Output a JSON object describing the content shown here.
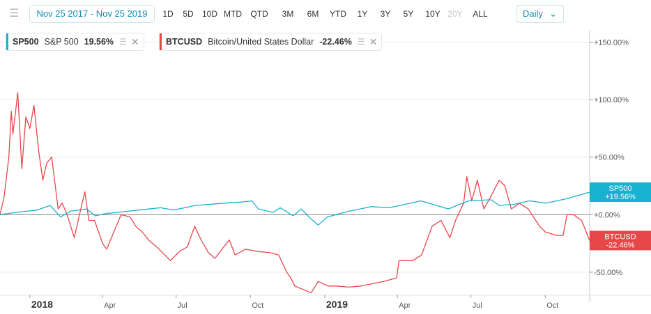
{
  "toolbar": {
    "date_range": "Nov 25 2017 - Nov 25 2019",
    "ranges": [
      "1D",
      "5D",
      "10D",
      "MTD",
      "QTD",
      "3M",
      "6M",
      "YTD",
      "1Y",
      "3Y",
      "5Y",
      "10Y",
      "20Y",
      "ALL"
    ],
    "disabled_range": "20Y",
    "interval": "Daily"
  },
  "legend": [
    {
      "symbol": "SP500",
      "name": "S&P 500",
      "change": "19.56%",
      "color": "#17b2cf"
    },
    {
      "symbol": "BTCUSD",
      "name": "Bitcoin/United States Dollar",
      "change": "-22.46%",
      "color": "#e8474a"
    }
  ],
  "colors": {
    "sp500": "#17b2cf",
    "btc": "#e8474a",
    "zero_line": "#888888",
    "grid": "#e9e9e9"
  },
  "chart_data": {
    "type": "line",
    "x_axis": {
      "start": "2017-11-25",
      "end": "2019-11-25",
      "ticks": [
        {
          "label": "2018",
          "date": "2018-01-01",
          "bold": true
        },
        {
          "label": "Apr",
          "date": "2018-04-01"
        },
        {
          "label": "Jul",
          "date": "2018-07-01"
        },
        {
          "label": "Oct",
          "date": "2018-10-01"
        },
        {
          "label": "2019",
          "date": "2019-01-01",
          "bold": true
        },
        {
          "label": "Apr",
          "date": "2019-04-01"
        },
        {
          "label": "Jul",
          "date": "2019-07-01"
        },
        {
          "label": "Oct",
          "date": "2019-10-01"
        }
      ]
    },
    "y_axis": {
      "unit": "%",
      "ylim": [
        -70,
        160
      ],
      "ticks": [
        {
          "value": 150,
          "label": "+150.00%"
        },
        {
          "value": 100,
          "label": "+100.00%"
        },
        {
          "value": 50,
          "label": "+50.00%"
        },
        {
          "value": 0,
          "label": "+0.00%"
        },
        {
          "value": -50,
          "label": "-50.00%"
        }
      ]
    },
    "end_labels": [
      {
        "series": "SP500",
        "name": "SP500",
        "value": "+19.56%"
      },
      {
        "series": "BTCUSD",
        "name": "BTCUSD",
        "value": "-22.46%"
      }
    ],
    "series": [
      {
        "name": "SP500",
        "points": [
          [
            "2017-11-25",
            0
          ],
          [
            "2017-12-15",
            2
          ],
          [
            "2018-01-10",
            4
          ],
          [
            "2018-01-26",
            8
          ],
          [
            "2018-02-08",
            -2
          ],
          [
            "2018-02-20",
            3
          ],
          [
            "2018-03-12",
            5
          ],
          [
            "2018-03-23",
            -1
          ],
          [
            "2018-04-05",
            1
          ],
          [
            "2018-04-20",
            2
          ],
          [
            "2018-05-15",
            4
          ],
          [
            "2018-06-12",
            6
          ],
          [
            "2018-06-28",
            4
          ],
          [
            "2018-07-25",
            8
          ],
          [
            "2018-08-29",
            10
          ],
          [
            "2018-09-20",
            11
          ],
          [
            "2018-10-03",
            12
          ],
          [
            "2018-10-11",
            5
          ],
          [
            "2018-10-29",
            2
          ],
          [
            "2018-11-07",
            6
          ],
          [
            "2018-11-23",
            -1
          ],
          [
            "2018-12-03",
            5
          ],
          [
            "2018-12-14",
            -3
          ],
          [
            "2018-12-24",
            -9
          ],
          [
            "2019-01-04",
            -2
          ],
          [
            "2019-01-31",
            3
          ],
          [
            "2019-02-28",
            7
          ],
          [
            "2019-03-22",
            6
          ],
          [
            "2019-04-30",
            12
          ],
          [
            "2019-05-15",
            9
          ],
          [
            "2019-06-03",
            5
          ],
          [
            "2019-06-28",
            12
          ],
          [
            "2019-07-26",
            13
          ],
          [
            "2019-08-05",
            8
          ],
          [
            "2019-08-23",
            9
          ],
          [
            "2019-09-12",
            12
          ],
          [
            "2019-10-02",
            10
          ],
          [
            "2019-10-28",
            14
          ],
          [
            "2019-11-25",
            19.56
          ]
        ]
      },
      {
        "name": "BTCUSD",
        "points": [
          [
            "2017-11-25",
            0
          ],
          [
            "2017-11-30",
            15
          ],
          [
            "2017-12-06",
            50
          ],
          [
            "2017-12-09",
            90
          ],
          [
            "2017-12-11",
            70
          ],
          [
            "2017-12-17",
            106
          ],
          [
            "2017-12-22",
            40
          ],
          [
            "2017-12-27",
            85
          ],
          [
            "2018-01-01",
            75
          ],
          [
            "2018-01-06",
            95
          ],
          [
            "2018-01-12",
            55
          ],
          [
            "2018-01-17",
            30
          ],
          [
            "2018-01-22",
            45
          ],
          [
            "2018-01-28",
            50
          ],
          [
            "2018-02-05",
            5
          ],
          [
            "2018-02-10",
            10
          ],
          [
            "2018-02-16",
            0
          ],
          [
            "2018-02-25",
            -20
          ],
          [
            "2018-03-05",
            5
          ],
          [
            "2018-03-10",
            20
          ],
          [
            "2018-03-15",
            -5
          ],
          [
            "2018-03-22",
            -5
          ],
          [
            "2018-04-01",
            -25
          ],
          [
            "2018-04-06",
            -30
          ],
          [
            "2018-04-15",
            -15
          ],
          [
            "2018-04-24",
            0
          ],
          [
            "2018-05-05",
            -2
          ],
          [
            "2018-05-12",
            -10
          ],
          [
            "2018-05-20",
            -15
          ],
          [
            "2018-05-28",
            -22
          ],
          [
            "2018-06-10",
            -30
          ],
          [
            "2018-06-24",
            -40
          ],
          [
            "2018-07-05",
            -32
          ],
          [
            "2018-07-15",
            -28
          ],
          [
            "2018-07-24",
            -10
          ],
          [
            "2018-08-01",
            -22
          ],
          [
            "2018-08-10",
            -33
          ],
          [
            "2018-08-18",
            -38
          ],
          [
            "2018-08-29",
            -28
          ],
          [
            "2018-09-05",
            -22
          ],
          [
            "2018-09-12",
            -35
          ],
          [
            "2018-09-25",
            -30
          ],
          [
            "2018-10-10",
            -32
          ],
          [
            "2018-10-25",
            -33
          ],
          [
            "2018-11-05",
            -35
          ],
          [
            "2018-11-15",
            -50
          ],
          [
            "2018-11-20",
            -55
          ],
          [
            "2018-11-25",
            -62
          ],
          [
            "2018-12-05",
            -65
          ],
          [
            "2018-12-15",
            -68
          ],
          [
            "2018-12-24",
            -58
          ],
          [
            "2019-01-05",
            -62
          ],
          [
            "2019-01-15",
            -62
          ],
          [
            "2019-01-31",
            -63
          ],
          [
            "2019-02-15",
            -62
          ],
          [
            "2019-03-01",
            -60
          ],
          [
            "2019-03-15",
            -58
          ],
          [
            "2019-03-31",
            -55
          ],
          [
            "2019-04-03",
            -40
          ],
          [
            "2019-04-20",
            -40
          ],
          [
            "2019-05-01",
            -35
          ],
          [
            "2019-05-14",
            -10
          ],
          [
            "2019-05-25",
            -5
          ],
          [
            "2019-06-05",
            -20
          ],
          [
            "2019-06-12",
            -5
          ],
          [
            "2019-06-22",
            10
          ],
          [
            "2019-06-26",
            33
          ],
          [
            "2019-07-02",
            12
          ],
          [
            "2019-07-09",
            30
          ],
          [
            "2019-07-17",
            5
          ],
          [
            "2019-07-25",
            15
          ],
          [
            "2019-08-05",
            30
          ],
          [
            "2019-08-12",
            25
          ],
          [
            "2019-08-20",
            5
          ],
          [
            "2019-08-30",
            10
          ],
          [
            "2019-09-10",
            5
          ],
          [
            "2019-09-24",
            -10
          ],
          [
            "2019-10-01",
            -15
          ],
          [
            "2019-10-15",
            -18
          ],
          [
            "2019-10-23",
            -18
          ],
          [
            "2019-10-28",
            0
          ],
          [
            "2019-11-05",
            0
          ],
          [
            "2019-11-15",
            -5
          ],
          [
            "2019-11-25",
            -22.46
          ]
        ]
      }
    ]
  }
}
